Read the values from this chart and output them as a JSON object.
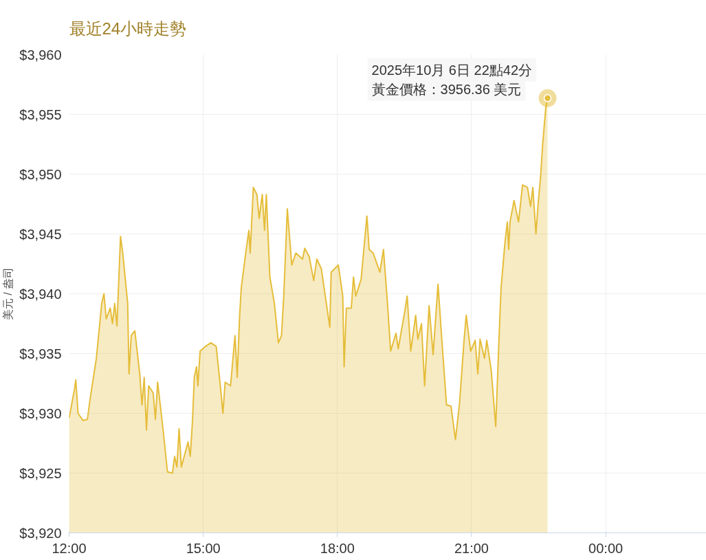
{
  "chart_data": {
    "type": "area",
    "title": "最近24小時走勢",
    "ylabel": "美元 / 盎司",
    "x": [
      12.0,
      12.12,
      12.15,
      12.2,
      12.31,
      12.41,
      12.47,
      12.61,
      12.73,
      12.78,
      12.83,
      12.92,
      12.97,
      13.02,
      13.07,
      13.15,
      13.2,
      13.31,
      13.34,
      13.39,
      13.47,
      13.58,
      13.63,
      13.68,
      13.73,
      13.78,
      13.88,
      13.93,
      13.98,
      14.1,
      14.2,
      14.31,
      14.36,
      14.41,
      14.46,
      14.51,
      14.66,
      14.71,
      14.76,
      14.8,
      14.85,
      14.88,
      14.93,
      15.05,
      15.17,
      15.29,
      15.39,
      15.44,
      15.49,
      15.61,
      15.71,
      15.76,
      15.81,
      15.85,
      15.95,
      16.02,
      16.05,
      16.12,
      16.2,
      16.25,
      16.32,
      16.37,
      16.41,
      16.49,
      16.59,
      16.68,
      16.75,
      16.8,
      16.88,
      16.98,
      17.07,
      17.22,
      17.27,
      17.37,
      17.47,
      17.54,
      17.64,
      17.83,
      17.86,
      18.02,
      18.12,
      18.15,
      18.2,
      18.31,
      18.36,
      18.41,
      18.53,
      18.63,
      18.66,
      18.71,
      18.8,
      18.95,
      19.03,
      19.12,
      19.19,
      19.31,
      19.36,
      19.51,
      19.56,
      19.64,
      19.75,
      19.8,
      19.88,
      19.95,
      20.05,
      20.14,
      20.25,
      20.34,
      20.44,
      20.54,
      20.64,
      20.73,
      20.83,
      20.88,
      20.98,
      21.08,
      21.14,
      21.19,
      21.29,
      21.34,
      21.44,
      21.54,
      21.61,
      21.66,
      21.75,
      21.8,
      21.83,
      21.86,
      21.95,
      22.05,
      22.14,
      22.25,
      22.32,
      22.37,
      22.44,
      22.49,
      22.54,
      22.59,
      22.66,
      22.7
    ],
    "series": [
      {
        "color": "#e5bd3a",
        "values": [
          3929.6,
          3932.0,
          3932.8,
          3930.0,
          3929.4,
          3929.5,
          3931.2,
          3934.6,
          3939.2,
          3940.0,
          3937.9,
          3938.8,
          3937.5,
          3939.2,
          3937.3,
          3944.8,
          3943.4,
          3939.2,
          3933.3,
          3936.5,
          3936.9,
          3933.3,
          3930.7,
          3933.0,
          3928.6,
          3932.3,
          3931.7,
          3929.5,
          3932.6,
          3928.7,
          3925.1,
          3925.0,
          3926.4,
          3925.5,
          3928.7,
          3925.5,
          3927.6,
          3926.4,
          3929.4,
          3933.0,
          3933.9,
          3932.3,
          3935.2,
          3935.6,
          3935.9,
          3935.6,
          3932.0,
          3930.0,
          3932.6,
          3932.3,
          3936.5,
          3933.0,
          3937.9,
          3940.5,
          3943.4,
          3945.3,
          3943.4,
          3948.9,
          3948.3,
          3946.3,
          3948.3,
          3945.3,
          3948.3,
          3941.4,
          3939.2,
          3935.9,
          3936.5,
          3939.8,
          3947.1,
          3942.4,
          3943.4,
          3942.9,
          3943.8,
          3943.1,
          3941.1,
          3942.9,
          3942.1,
          3937.2,
          3941.8,
          3942.4,
          3939.8,
          3933.9,
          3938.8,
          3938.8,
          3941.4,
          3939.8,
          3941.2,
          3945.3,
          3946.5,
          3943.7,
          3943.4,
          3941.8,
          3943.7,
          3939.2,
          3935.2,
          3936.7,
          3935.4,
          3938.6,
          3939.8,
          3935.2,
          3938.2,
          3936.2,
          3937.5,
          3932.3,
          3939.0,
          3934.9,
          3940.8,
          3935.9,
          3930.7,
          3930.6,
          3927.8,
          3930.8,
          3936.0,
          3938.2,
          3935.2,
          3936.1,
          3933.3,
          3936.2,
          3934.6,
          3936.1,
          3933.6,
          3928.9,
          3935.9,
          3940.5,
          3944.4,
          3946.0,
          3943.7,
          3946.0,
          3947.8,
          3946.0,
          3949.1,
          3948.9,
          3947.3,
          3948.9,
          3945.0,
          3947.6,
          3949.6,
          3952.5,
          3955.6,
          3956.36
        ]
      }
    ],
    "xlim": [
      12,
      26.25
    ],
    "xticks": [
      {
        "value": 12,
        "label": "12:00"
      },
      {
        "value": 15,
        "label": "15:00"
      },
      {
        "value": 18,
        "label": "18:00"
      },
      {
        "value": 21,
        "label": "21:00"
      },
      {
        "value": 24,
        "label": "00:00"
      }
    ],
    "ylim": [
      3920,
      3960
    ],
    "yticks": [
      {
        "value": 3920,
        "label": "$3,920"
      },
      {
        "value": 3925,
        "label": "$3,925"
      },
      {
        "value": 3930,
        "label": "$3,930"
      },
      {
        "value": 3935,
        "label": "$3,935"
      },
      {
        "value": 3940,
        "label": "$3,940"
      },
      {
        "value": 3945,
        "label": "$3,945"
      },
      {
        "value": 3950,
        "label": "$3,950"
      },
      {
        "value": 3955,
        "label": "$3,955"
      },
      {
        "value": 3960,
        "label": "$3,960"
      }
    ],
    "grid": true,
    "annotations": [
      {
        "text": "2025年10月 6日 22點42分",
        "x": 22.7,
        "y": 3956.36
      },
      {
        "text": "黃金價格：3956.36 美元",
        "x": 22.7,
        "y": 3956.36
      }
    ]
  }
}
